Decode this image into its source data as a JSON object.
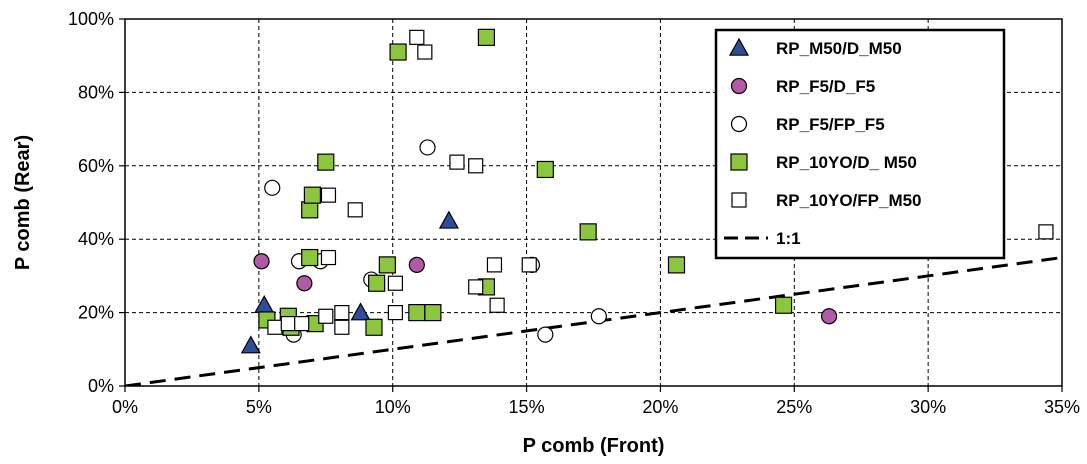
{
  "chart_data": {
    "type": "scatter",
    "xlabel": "P comb (Front)",
    "ylabel": "P comb (Rear)",
    "xlim": [
      0,
      35
    ],
    "ylim": [
      0,
      100
    ],
    "x_ticks": [
      "0%",
      "5%",
      "10%",
      "15%",
      "20%",
      "25%",
      "30%",
      "35%"
    ],
    "y_ticks": [
      "0%",
      "20%",
      "40%",
      "60%",
      "80%",
      "100%"
    ],
    "grid": true,
    "legend_position": "top-right",
    "series": [
      {
        "name": "RP_M50/D_M50",
        "marker": "triangle",
        "color": "#2e4e9a",
        "points": [
          [
            4.7,
            11
          ],
          [
            5.2,
            22
          ],
          [
            8.8,
            20
          ],
          [
            12.1,
            45
          ]
        ]
      },
      {
        "name": "RP_F5/D_F5",
        "marker": "circle-filled",
        "color": "#b15ba6",
        "points": [
          [
            5.1,
            34
          ],
          [
            6.7,
            28
          ],
          [
            10.9,
            33
          ],
          [
            26.3,
            19
          ]
        ]
      },
      {
        "name": "RP_F5/FP_F5",
        "marker": "circle-open",
        "color": "#ffffff",
        "points": [
          [
            5.5,
            54
          ],
          [
            6.5,
            34
          ],
          [
            7.3,
            34
          ],
          [
            6.3,
            14
          ],
          [
            9.2,
            29
          ],
          [
            11.3,
            65
          ],
          [
            15.2,
            33
          ],
          [
            15.7,
            14
          ],
          [
            17.7,
            19
          ]
        ]
      },
      {
        "name": "RP_10YO/D_ M50",
        "marker": "square-filled",
        "color": "#8cc63f",
        "points": [
          [
            5.3,
            18
          ],
          [
            6.1,
            19
          ],
          [
            6.2,
            16
          ],
          [
            6.9,
            48
          ],
          [
            7.0,
            52
          ],
          [
            6.9,
            35
          ],
          [
            7.1,
            17
          ],
          [
            7.5,
            61
          ],
          [
            9.4,
            28
          ],
          [
            9.8,
            33
          ],
          [
            9.3,
            16
          ],
          [
            10.2,
            91
          ],
          [
            10.9,
            20
          ],
          [
            11.5,
            20
          ],
          [
            13.5,
            95
          ],
          [
            13.5,
            27
          ],
          [
            15.7,
            59
          ],
          [
            17.3,
            42
          ],
          [
            20.6,
            33
          ],
          [
            24.6,
            22
          ]
        ]
      },
      {
        "name": "RP_10YO/FP_M50",
        "marker": "square-open",
        "color": "#ffffff",
        "points": [
          [
            5.6,
            16
          ],
          [
            6.1,
            17
          ],
          [
            6.6,
            17
          ],
          [
            7.5,
            19
          ],
          [
            7.6,
            35
          ],
          [
            7.6,
            52
          ],
          [
            8.1,
            20
          ],
          [
            8.1,
            16
          ],
          [
            8.6,
            48
          ],
          [
            10.1,
            20
          ],
          [
            10.1,
            28
          ],
          [
            10.9,
            95
          ],
          [
            11.2,
            91
          ],
          [
            12.4,
            61
          ],
          [
            13.1,
            27
          ],
          [
            13.1,
            60
          ],
          [
            13.8,
            33
          ],
          [
            13.9,
            22
          ],
          [
            15.1,
            33
          ],
          [
            34.4,
            42
          ]
        ]
      }
    ],
    "reference_line": {
      "name": "1:1",
      "from": [
        0,
        0
      ],
      "to": [
        35,
        35
      ]
    }
  }
}
